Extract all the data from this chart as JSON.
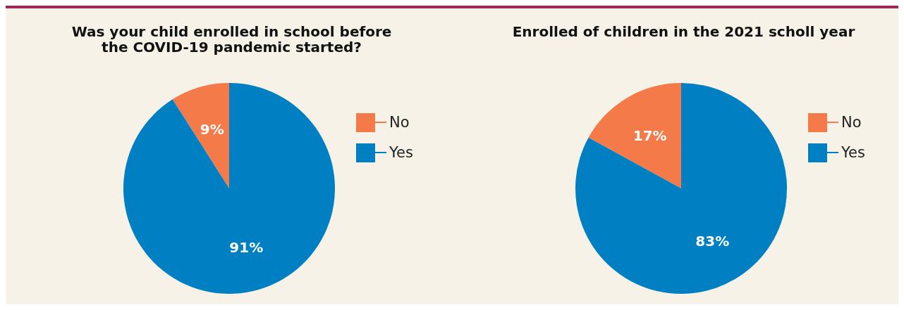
{
  "chart_data": [
    {
      "type": "pie",
      "title": "Was your child enrolled in school before the COVID-19 pandemic started?",
      "categories": [
        "No",
        "Yes"
      ],
      "values": [
        9,
        91
      ],
      "value_labels": [
        "9%",
        "91%"
      ],
      "colors": [
        "#f47a4a",
        "#0080c3"
      ],
      "legend": "right"
    },
    {
      "type": "pie",
      "title": "Enrolled of children in the 2021 scholl year",
      "categories": [
        "No",
        "Yes"
      ],
      "values": [
        17,
        83
      ],
      "value_labels": [
        "17%",
        "83%"
      ],
      "colors": [
        "#f47a4a",
        "#0080c3"
      ],
      "legend": "right"
    }
  ]
}
